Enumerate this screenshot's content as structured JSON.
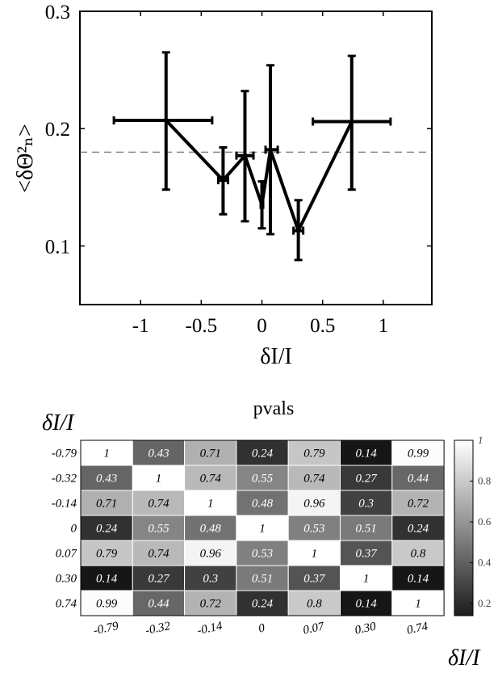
{
  "chart_data": [
    {
      "type": "line",
      "xlabel": "δI/I",
      "ylabel": "<δΘ²ₙ>",
      "xlim": [
        -1.5,
        1.4
      ],
      "ylim": [
        0.05,
        0.3
      ],
      "xticks": [
        "-1",
        "-0.5",
        "0",
        "0.5",
        "1"
      ],
      "xtick_values": [
        -1,
        -0.5,
        0,
        0.5,
        1
      ],
      "yticks": [
        "0.1",
        "0.2",
        "0.3"
      ],
      "ytick_values": [
        0.1,
        0.2,
        0.3
      ],
      "reference_line": 0.18,
      "points": [
        {
          "x": -0.79,
          "y": 0.207,
          "xerr_lo": -1.22,
          "xerr_hi": -0.41,
          "yerr_lo": 0.148,
          "yerr_hi": 0.265
        },
        {
          "x": -0.32,
          "y": 0.156,
          "xerr_lo": -0.36,
          "xerr_hi": -0.28,
          "yerr_lo": 0.127,
          "yerr_hi": 0.184
        },
        {
          "x": -0.14,
          "y": 0.177,
          "xerr_lo": -0.21,
          "xerr_hi": -0.07,
          "yerr_lo": 0.121,
          "yerr_hi": 0.232
        },
        {
          "x": 0,
          "y": 0.135,
          "xerr_lo": -0.01,
          "xerr_hi": 0.01,
          "yerr_lo": 0.115,
          "yerr_hi": 0.155
        },
        {
          "x": 0.07,
          "y": 0.182,
          "xerr_lo": 0.03,
          "xerr_hi": 0.13,
          "yerr_lo": 0.11,
          "yerr_hi": 0.254
        },
        {
          "x": 0.3,
          "y": 0.113,
          "xerr_lo": 0.26,
          "xerr_hi": 0.34,
          "yerr_lo": 0.088,
          "yerr_hi": 0.139
        },
        {
          "x": 0.74,
          "y": 0.206,
          "xerr_lo": 0.42,
          "xerr_hi": 1.06,
          "yerr_lo": 0.148,
          "yerr_hi": 0.262
        }
      ]
    },
    {
      "type": "heatmap",
      "title": "pvals",
      "row_axis_label": "δI/I",
      "col_axis_label": "δI/I",
      "row_labels": [
        "-0.79",
        "-0.32",
        "-0.14",
        "0",
        "0.07",
        "0.30",
        "0.74"
      ],
      "col_labels": [
        "-0.79",
        "-0.32",
        "-0.14",
        "0",
        "0.07",
        "0.30",
        "0.74"
      ],
      "values": [
        [
          1,
          0.43,
          0.71,
          0.24,
          0.79,
          0.14,
          0.99
        ],
        [
          0.43,
          1,
          0.74,
          0.55,
          0.74,
          0.27,
          0.44
        ],
        [
          0.71,
          0.74,
          1,
          0.48,
          0.96,
          0.3,
          0.72
        ],
        [
          0.24,
          0.55,
          0.48,
          1,
          0.53,
          0.51,
          0.24
        ],
        [
          0.79,
          0.74,
          0.96,
          0.53,
          1,
          0.37,
          0.8
        ],
        [
          0.14,
          0.27,
          0.3,
          0.51,
          0.37,
          1,
          0.14
        ],
        [
          0.99,
          0.44,
          0.72,
          0.24,
          0.8,
          0.14,
          1
        ]
      ],
      "colormap": "gray",
      "clim": [
        0.14,
        1
      ],
      "colorbar_ticks": [
        "0.2",
        "0.4",
        "0.6",
        "0.8",
        "1"
      ],
      "colorbar_tick_values": [
        0.2,
        0.4,
        0.6,
        0.8,
        1
      ]
    }
  ]
}
